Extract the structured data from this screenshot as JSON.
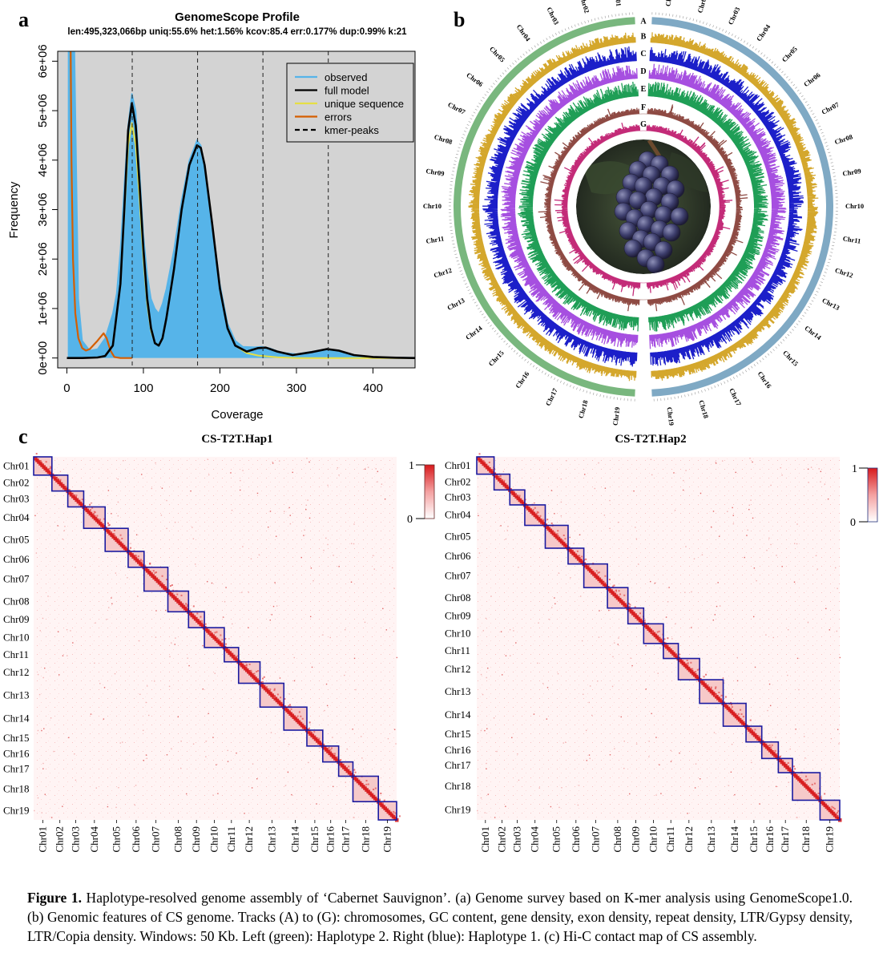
{
  "panels": {
    "a": "a",
    "b": "b",
    "c": "c"
  },
  "chart_a": {
    "type": "area",
    "title": "GenomeScope Profile",
    "subtitle": "len:495,323,066bp uniq:55.6%  het:1.56% kcov:85.4 err:0.177%  dup:0.99%  k:21",
    "xlabel": "Coverage",
    "ylabel": "Frequency",
    "x_ticks": [
      "0",
      "100",
      "200",
      "300",
      "400"
    ],
    "y_ticks": [
      "0e+00",
      "1e+06",
      "2e+06",
      "3e+06",
      "4e+06",
      "5e+06",
      "6e+06"
    ],
    "xlim": [
      -12,
      455
    ],
    "ylim": [
      -200000,
      6200000
    ],
    "legend": [
      {
        "name": "observed",
        "color": "#56B4E9",
        "style": "solid"
      },
      {
        "name": "full model",
        "color": "#000000",
        "style": "solid"
      },
      {
        "name": "unique sequence",
        "color": "#E6DF44",
        "style": "solid"
      },
      {
        "name": "errors",
        "color": "#D55E00",
        "style": "solid"
      },
      {
        "name": "kmer-peaks",
        "color": "#000000",
        "style": "dashed"
      }
    ],
    "kmer_peaks": [
      85.4,
      170.8,
      256.2,
      341.6
    ],
    "observed": [
      [
        2,
        6200000
      ],
      [
        10,
        6200000
      ],
      [
        15,
        1200000
      ],
      [
        20,
        350000
      ],
      [
        30,
        150000
      ],
      [
        40,
        180000
      ],
      [
        50,
        400000
      ],
      [
        55,
        650000
      ],
      [
        60,
        900000
      ],
      [
        65,
        1300000
      ],
      [
        70,
        2200000
      ],
      [
        75,
        3500000
      ],
      [
        80,
        4700000
      ],
      [
        85,
        5350000
      ],
      [
        90,
        5000000
      ],
      [
        95,
        3800000
      ],
      [
        100,
        2500000
      ],
      [
        105,
        1700000
      ],
      [
        110,
        1200000
      ],
      [
        115,
        1000000
      ],
      [
        120,
        900000
      ],
      [
        125,
        1100000
      ],
      [
        130,
        1400000
      ],
      [
        140,
        2200000
      ],
      [
        150,
        3200000
      ],
      [
        160,
        4000000
      ],
      [
        170,
        4400000
      ],
      [
        175,
        4300000
      ],
      [
        180,
        3900000
      ],
      [
        190,
        2700000
      ],
      [
        200,
        1500000
      ],
      [
        210,
        700000
      ],
      [
        220,
        350000
      ],
      [
        230,
        230000
      ],
      [
        245,
        220000
      ],
      [
        255,
        230000
      ],
      [
        265,
        200000
      ],
      [
        280,
        110000
      ],
      [
        300,
        80000
      ],
      [
        320,
        130000
      ],
      [
        340,
        180000
      ],
      [
        360,
        120000
      ],
      [
        380,
        50000
      ],
      [
        400,
        20000
      ],
      [
        430,
        10000
      ],
      [
        455,
        5000
      ]
    ],
    "full_model": [
      [
        0,
        0
      ],
      [
        20,
        0
      ],
      [
        40,
        10000
      ],
      [
        50,
        40000
      ],
      [
        60,
        250000
      ],
      [
        70,
        1500000
      ],
      [
        75,
        3000000
      ],
      [
        80,
        4600000
      ],
      [
        85,
        5150000
      ],
      [
        90,
        4700000
      ],
      [
        95,
        3500000
      ],
      [
        100,
        2200000
      ],
      [
        105,
        1200000
      ],
      [
        110,
        600000
      ],
      [
        115,
        300000
      ],
      [
        120,
        250000
      ],
      [
        125,
        400000
      ],
      [
        130,
        800000
      ],
      [
        140,
        1800000
      ],
      [
        150,
        3000000
      ],
      [
        160,
        3900000
      ],
      [
        170,
        4300000
      ],
      [
        175,
        4250000
      ],
      [
        180,
        3900000
      ],
      [
        190,
        2700000
      ],
      [
        200,
        1400000
      ],
      [
        210,
        600000
      ],
      [
        220,
        250000
      ],
      [
        235,
        130000
      ],
      [
        250,
        200000
      ],
      [
        260,
        210000
      ],
      [
        275,
        130000
      ],
      [
        295,
        60000
      ],
      [
        320,
        120000
      ],
      [
        340,
        180000
      ],
      [
        355,
        150000
      ],
      [
        375,
        60000
      ],
      [
        400,
        20000
      ],
      [
        430,
        5000
      ],
      [
        455,
        0
      ]
    ],
    "unique_sequence": [
      [
        60,
        250000
      ],
      [
        70,
        1500000
      ],
      [
        75,
        2900000
      ],
      [
        80,
        4300000
      ],
      [
        85,
        4750000
      ],
      [
        90,
        4300000
      ],
      [
        95,
        3200000
      ],
      [
        100,
        2000000
      ],
      [
        105,
        1100000
      ],
      [
        110,
        550000
      ],
      [
        115,
        300000
      ],
      [
        120,
        250000
      ],
      [
        125,
        400000
      ],
      [
        130,
        800000
      ],
      [
        140,
        1800000
      ],
      [
        150,
        3000000
      ],
      [
        160,
        3900000
      ],
      [
        170,
        4300000
      ],
      [
        175,
        4250000
      ],
      [
        180,
        3900000
      ],
      [
        190,
        2700000
      ],
      [
        200,
        1400000
      ],
      [
        210,
        600000
      ],
      [
        220,
        250000
      ],
      [
        235,
        100000
      ],
      [
        250,
        50000
      ],
      [
        275,
        15000
      ],
      [
        300,
        0
      ],
      [
        455,
        0
      ]
    ],
    "errors": [
      [
        5,
        6200000
      ],
      [
        6,
        4000000
      ],
      [
        8,
        2000000
      ],
      [
        11,
        900000
      ],
      [
        15,
        400000
      ],
      [
        20,
        200000
      ],
      [
        25,
        150000
      ],
      [
        30,
        180000
      ],
      [
        40,
        350000
      ],
      [
        48,
        500000
      ],
      [
        52,
        400000
      ],
      [
        57,
        150000
      ],
      [
        62,
        20000
      ],
      [
        70,
        0
      ],
      [
        85,
        0
      ]
    ]
  },
  "chart_b": {
    "track_letters": [
      "A",
      "B",
      "C",
      "D",
      "E",
      "F",
      "G"
    ],
    "chromosomes": [
      "Chr01",
      "Chr02",
      "Chr03",
      "Chr04",
      "Chr05",
      "Chr06",
      "Chr07",
      "Chr08",
      "Chr09",
      "Chr10",
      "Chr11",
      "Chr12",
      "Chr13",
      "Chr14",
      "Chr15",
      "Chr16",
      "Chr17",
      "Chr18",
      "Chr19"
    ],
    "track_colors": [
      "#79B77E",
      "#D4A72C",
      "#1C1FC9",
      "#A64FE0",
      "#1F9E56",
      "#8E4A43",
      "#C32B78"
    ],
    "right_outer_color": "#7FA9C4"
  },
  "chart_c": {
    "type": "heatmap",
    "titles": [
      "CS-T2T.Hap1",
      "CS-T2T.Hap2"
    ],
    "chromosomes": [
      "Chr01",
      "Chr02",
      "Chr03",
      "Chr04",
      "Chr05",
      "Chr06",
      "Chr07",
      "Chr08",
      "Chr09",
      "Chr10",
      "Chr11",
      "Chr12",
      "Chr13",
      "Chr14",
      "Chr15",
      "Chr16",
      "Chr17",
      "Chr18",
      "Chr19"
    ],
    "colorbar": {
      "max": "1",
      "min": "0"
    },
    "hap1_sizes": [
      23,
      20,
      20,
      27,
      29,
      20,
      30,
      26,
      20,
      25,
      18,
      27,
      30,
      29,
      20,
      20,
      18,
      32,
      23
    ],
    "hap2_sizes": [
      22,
      20,
      19,
      26,
      29,
      20,
      30,
      26,
      20,
      25,
      19,
      27,
      30,
      29,
      20,
      21,
      18,
      35,
      25
    ]
  },
  "caption": {
    "label": "Figure 1.",
    "text": " Haplotype-resolved genome assembly of ‘Cabernet Sauvignon’. (a) Genome survey based on K-mer analysis using GenomeScope1.0. (b) Genomic features of CS genome. Tracks (A) to (G): chromosomes, GC content, gene density, exon density, repeat density, LTR/Gypsy density, LTR/Copia density. Windows: 50 Kb. Left (green): Haplotype 2. Right (blue): Haplotype 1. (c) Hi-C contact map of CS assembly."
  }
}
